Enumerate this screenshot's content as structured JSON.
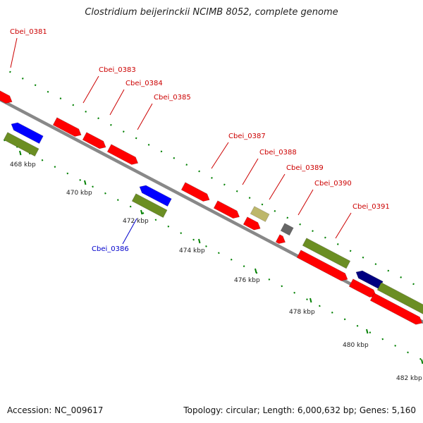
{
  "title": "Clostridium beijerinckii NCIMB 8052, complete genome",
  "footer": {
    "accession": "Accession: NC_009617",
    "summary": "Topology: circular; Length: 6,000,632 bp; Genes: 5,160"
  },
  "colors": {
    "backbone": "#888888",
    "forward_gene": "#ff0000",
    "highlight_gene": "#0000ff",
    "cds_feature": "#6b8e23",
    "dark_gene": "#000080",
    "pseudo_gene": "#bdb76b",
    "grey_gene": "#666666",
    "tick": "#008000",
    "gene_label": "#cc0000",
    "highlight_label": "#0000cc"
  },
  "ticks": [
    {
      "label": "468 kbp"
    },
    {
      "label": "470 kbp"
    },
    {
      "label": "472 kbp"
    },
    {
      "label": "474 kbp"
    },
    {
      "label": "476 kbp"
    },
    {
      "label": "478 kbp"
    },
    {
      "label": "480 kbp"
    },
    {
      "label": "482 kbp"
    }
  ],
  "gene_labels": [
    {
      "name": "Cbei_0381",
      "style": "forward"
    },
    {
      "name": "Cbei_0383",
      "style": "forward"
    },
    {
      "name": "Cbei_0384",
      "style": "forward"
    },
    {
      "name": "Cbei_0385",
      "style": "forward"
    },
    {
      "name": "Cbei_0386",
      "style": "highlight"
    },
    {
      "name": "Cbei_0387",
      "style": "forward"
    },
    {
      "name": "Cbei_0388",
      "style": "forward"
    },
    {
      "name": "Cbei_0389",
      "style": "forward"
    },
    {
      "name": "Cbei_0390",
      "style": "forward"
    },
    {
      "name": "Cbei_0391",
      "style": "forward"
    }
  ]
}
